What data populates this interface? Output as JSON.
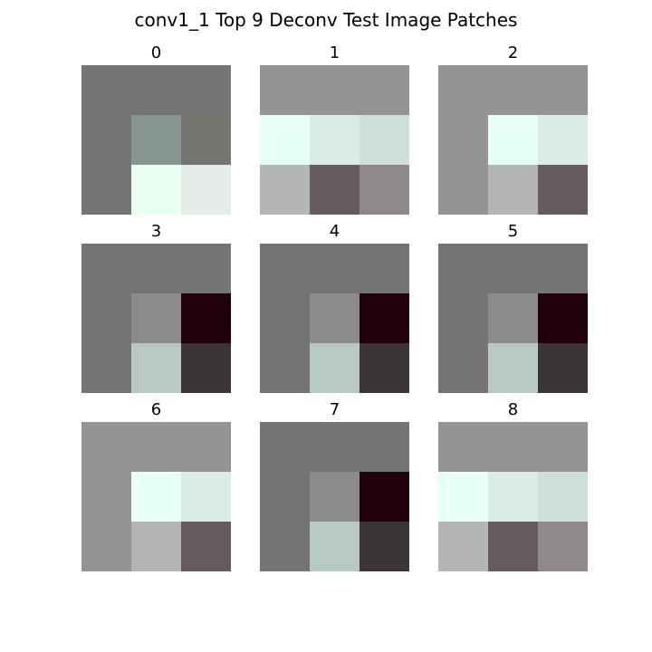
{
  "chart_data": {
    "type": "heatmap",
    "title": "conv1_1 Top 9 Deconv Test Image Patches",
    "grid": false,
    "patches": [
      {
        "label": "0",
        "pixels": [
          [
            "#747474",
            "#747474",
            "#747474"
          ],
          [
            "#747474",
            "#879590",
            "#747471"
          ],
          [
            "#747474",
            "#e6fff1",
            "#e5ebe7"
          ]
        ]
      },
      {
        "label": "1",
        "pixels": [
          [
            "#949494",
            "#949494",
            "#949494"
          ],
          [
            "#e6fff7",
            "#d9ece7",
            "#cfe0da"
          ],
          [
            "#b4b5b7",
            "#655a5f",
            "#8f898a"
          ]
        ]
      },
      {
        "label": "2",
        "pixels": [
          [
            "#949494",
            "#949494",
            "#949494"
          ],
          [
            "#949494",
            "#e6fff7",
            "#d9ece7"
          ],
          [
            "#949494",
            "#b4b5b7",
            "#655a5f"
          ]
        ]
      },
      {
        "label": "3",
        "pixels": [
          [
            "#747474",
            "#747474",
            "#747474"
          ],
          [
            "#747474",
            "#8d8a8b",
            "#1f000b"
          ],
          [
            "#747474",
            "#b8c9c3",
            "#3c3538"
          ]
        ]
      },
      {
        "label": "4",
        "pixels": [
          [
            "#747474",
            "#747474",
            "#747474"
          ],
          [
            "#747474",
            "#8d8a8b",
            "#1f000b"
          ],
          [
            "#747474",
            "#b8c9c3",
            "#3c3538"
          ]
        ]
      },
      {
        "label": "5",
        "pixels": [
          [
            "#747474",
            "#747474",
            "#747474"
          ],
          [
            "#747474",
            "#8d8a8b",
            "#1f000b"
          ],
          [
            "#747474",
            "#b8c9c3",
            "#3c3538"
          ]
        ]
      },
      {
        "label": "6",
        "pixels": [
          [
            "#949494",
            "#949494",
            "#949494"
          ],
          [
            "#949494",
            "#e6fff7",
            "#d9ece7"
          ],
          [
            "#949494",
            "#b4b5b7",
            "#655a5f"
          ]
        ]
      },
      {
        "label": "7",
        "pixels": [
          [
            "#747474",
            "#747474",
            "#747474"
          ],
          [
            "#747474",
            "#8d8a8b",
            "#1f000b"
          ],
          [
            "#747474",
            "#b8c9c3",
            "#3c3538"
          ]
        ]
      },
      {
        "label": "8",
        "pixels": [
          [
            "#949494",
            "#949494",
            "#949494"
          ],
          [
            "#e6fff7",
            "#d9ece7",
            "#cfe0da"
          ],
          [
            "#b4b5b7",
            "#655a5f",
            "#8f898a"
          ]
        ]
      }
    ]
  }
}
